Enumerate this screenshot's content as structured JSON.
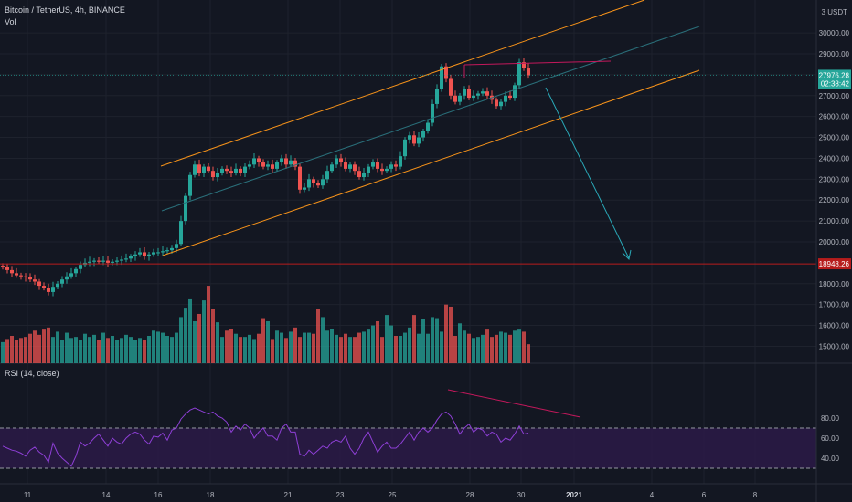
{
  "header": {
    "title": "Bitcoin / TetherUS, 4h, BINANCE",
    "volume_label": "Vol"
  },
  "price_axis": {
    "currency_top": "3 USDT",
    "ticks": [
      "30000.00",
      "29000.00",
      "28000.00",
      "27000.00",
      "26000.00",
      "25000.00",
      "24000.00",
      "23000.00",
      "22000.00",
      "21000.00",
      "20000.00",
      "18000.00",
      "17000.00",
      "16000.00",
      "15000.00"
    ],
    "tick_values": [
      30000,
      29000,
      28000,
      27000,
      26000,
      25000,
      24000,
      23000,
      22000,
      21000,
      20000,
      18000,
      17000,
      16000,
      15000
    ],
    "last_price_label": "27976.28",
    "countdown_label": "02:38:42",
    "support_label": "18948.26"
  },
  "time_axis": {
    "labels": [
      "11",
      "14",
      "16",
      "18",
      "21",
      "23",
      "25",
      "28",
      "30",
      "2021",
      "4",
      "6",
      "8"
    ]
  },
  "rsi_panel": {
    "label": "RSI (14, close)",
    "ticks": [
      "80.00",
      "60.00",
      "40.00"
    ],
    "tick_values": [
      80,
      60,
      40
    ],
    "upper_band": 70,
    "lower_band": 30
  },
  "colors": {
    "background": "#131722",
    "grid": "#1e222d",
    "up": "#26a69a",
    "down": "#ef5350",
    "channel": "#f7931a",
    "midline": "#2a6f7a",
    "arrow": "#2aa9b8",
    "support": "#b71c1c",
    "divergence": "#c2185b",
    "rsi_line": "#8e3fd6",
    "rsi_band_fill": "#2a1a45",
    "text": "#b2b5be"
  },
  "chart_data": {
    "type": "candlestick",
    "symbol": "Bitcoin / TetherUS",
    "interval": "4h",
    "exchange": "BINANCE",
    "x": [
      "11",
      "14",
      "16",
      "18",
      "21",
      "23",
      "25",
      "28",
      "30",
      "2021",
      "4",
      "6",
      "8"
    ],
    "ylim": [
      14500,
      30600
    ],
    "last_price": 27976.28,
    "support_level": 18948.26,
    "price_closes": [
      18800,
      18650,
      18500,
      18400,
      18350,
      18300,
      18200,
      18100,
      17900,
      17800,
      17600,
      17850,
      18000,
      18200,
      18350,
      18500,
      18700,
      18900,
      19000,
      19050,
      19100,
      19050,
      19100,
      19000,
      19050,
      19100,
      19150,
      19200,
      19300,
      19400,
      19500,
      19300,
      19400,
      19500,
      19500,
      19550,
      19600,
      19700,
      19900,
      21000,
      22200,
      23200,
      23700,
      23300,
      23600,
      23400,
      23100,
      23300,
      23500,
      23400,
      23300,
      23500,
      23300,
      23600,
      23700,
      24000,
      23800,
      23600,
      23700,
      23500,
      23800,
      24000,
      23700,
      23900,
      23600,
      22500,
      22600,
      23000,
      22800,
      22700,
      23000,
      23400,
      23700,
      24000,
      23800,
      23500,
      23700,
      23400,
      23100,
      23300,
      23600,
      23800,
      23500,
      23400,
      23500,
      23700,
      23600,
      24100,
      24900,
      25100,
      24700,
      25000,
      25300,
      25700,
      26600,
      27300,
      28400,
      27800,
      27000,
      26700,
      27000,
      27300,
      26900,
      27000,
      27100,
      27200,
      27000,
      26800,
      26500,
      26700,
      27000,
      26900,
      27500,
      28600,
      28300,
      27976
    ],
    "volume_values": [
      15200,
      15350,
      15500,
      15300,
      15400,
      15450,
      15600,
      15750,
      15550,
      15800,
      15900,
      15450,
      15700,
      15300,
      15650,
      15400,
      15450,
      15300,
      15600,
      15450,
      15550,
      15300,
      15650,
      15400,
      15500,
      15300,
      15400,
      15550,
      15450,
      15300,
      15400,
      15300,
      15500,
      15750,
      15700,
      15650,
      15500,
      15450,
      15650,
      16400,
      16850,
      17250,
      16200,
      16550,
      17200,
      17900,
      16800,
      16150,
      15450,
      15750,
      15850,
      15600,
      15450,
      15450,
      15550,
      15350,
      15600,
      16350,
      16200,
      15350,
      15750,
      15650,
      15400,
      15700,
      15900,
      15450,
      15650,
      15650,
      15600,
      16800,
      16400,
      15750,
      15850,
      15550,
      15450,
      15600,
      15450,
      15450,
      15650,
      15700,
      15800,
      16000,
      16200,
      15450,
      16500,
      16000,
      15500,
      15500,
      15650,
      15900,
      16500,
      15600,
      16300,
      15600,
      16400,
      16350,
      15700,
      17000,
      16900,
      15500,
      16100,
      15750,
      15600,
      15400,
      15450,
      15550,
      15800,
      15450,
      15550,
      15700,
      15650,
      15550,
      15750,
      15800,
      15700,
      15100
    ],
    "rsi_values": [
      52,
      50,
      48,
      47,
      45,
      42,
      48,
      51,
      46,
      43,
      36,
      55,
      45,
      40,
      36,
      32,
      42,
      56,
      52,
      55,
      60,
      64,
      58,
      52,
      60,
      56,
      54,
      60,
      64,
      66,
      64,
      58,
      54,
      62,
      61,
      65,
      58,
      68,
      70,
      79,
      84,
      88,
      90,
      88,
      86,
      84,
      86,
      82,
      80,
      76,
      66,
      72,
      68,
      74,
      70,
      60,
      66,
      70,
      62,
      62,
      58,
      70,
      74,
      66,
      66,
      44,
      42,
      48,
      44,
      48,
      52,
      50,
      56,
      58,
      56,
      62,
      50,
      44,
      50,
      60,
      66,
      56,
      46,
      52,
      56,
      50,
      50,
      54,
      60,
      66,
      58,
      66,
      70,
      66,
      70,
      78,
      84,
      86,
      82,
      74,
      64,
      70,
      74,
      66,
      70,
      68,
      62,
      66,
      64,
      56,
      60,
      58,
      64,
      72,
      64,
      65
    ],
    "channel_note": "ascending channel with projected breakdown arrow toward support"
  }
}
